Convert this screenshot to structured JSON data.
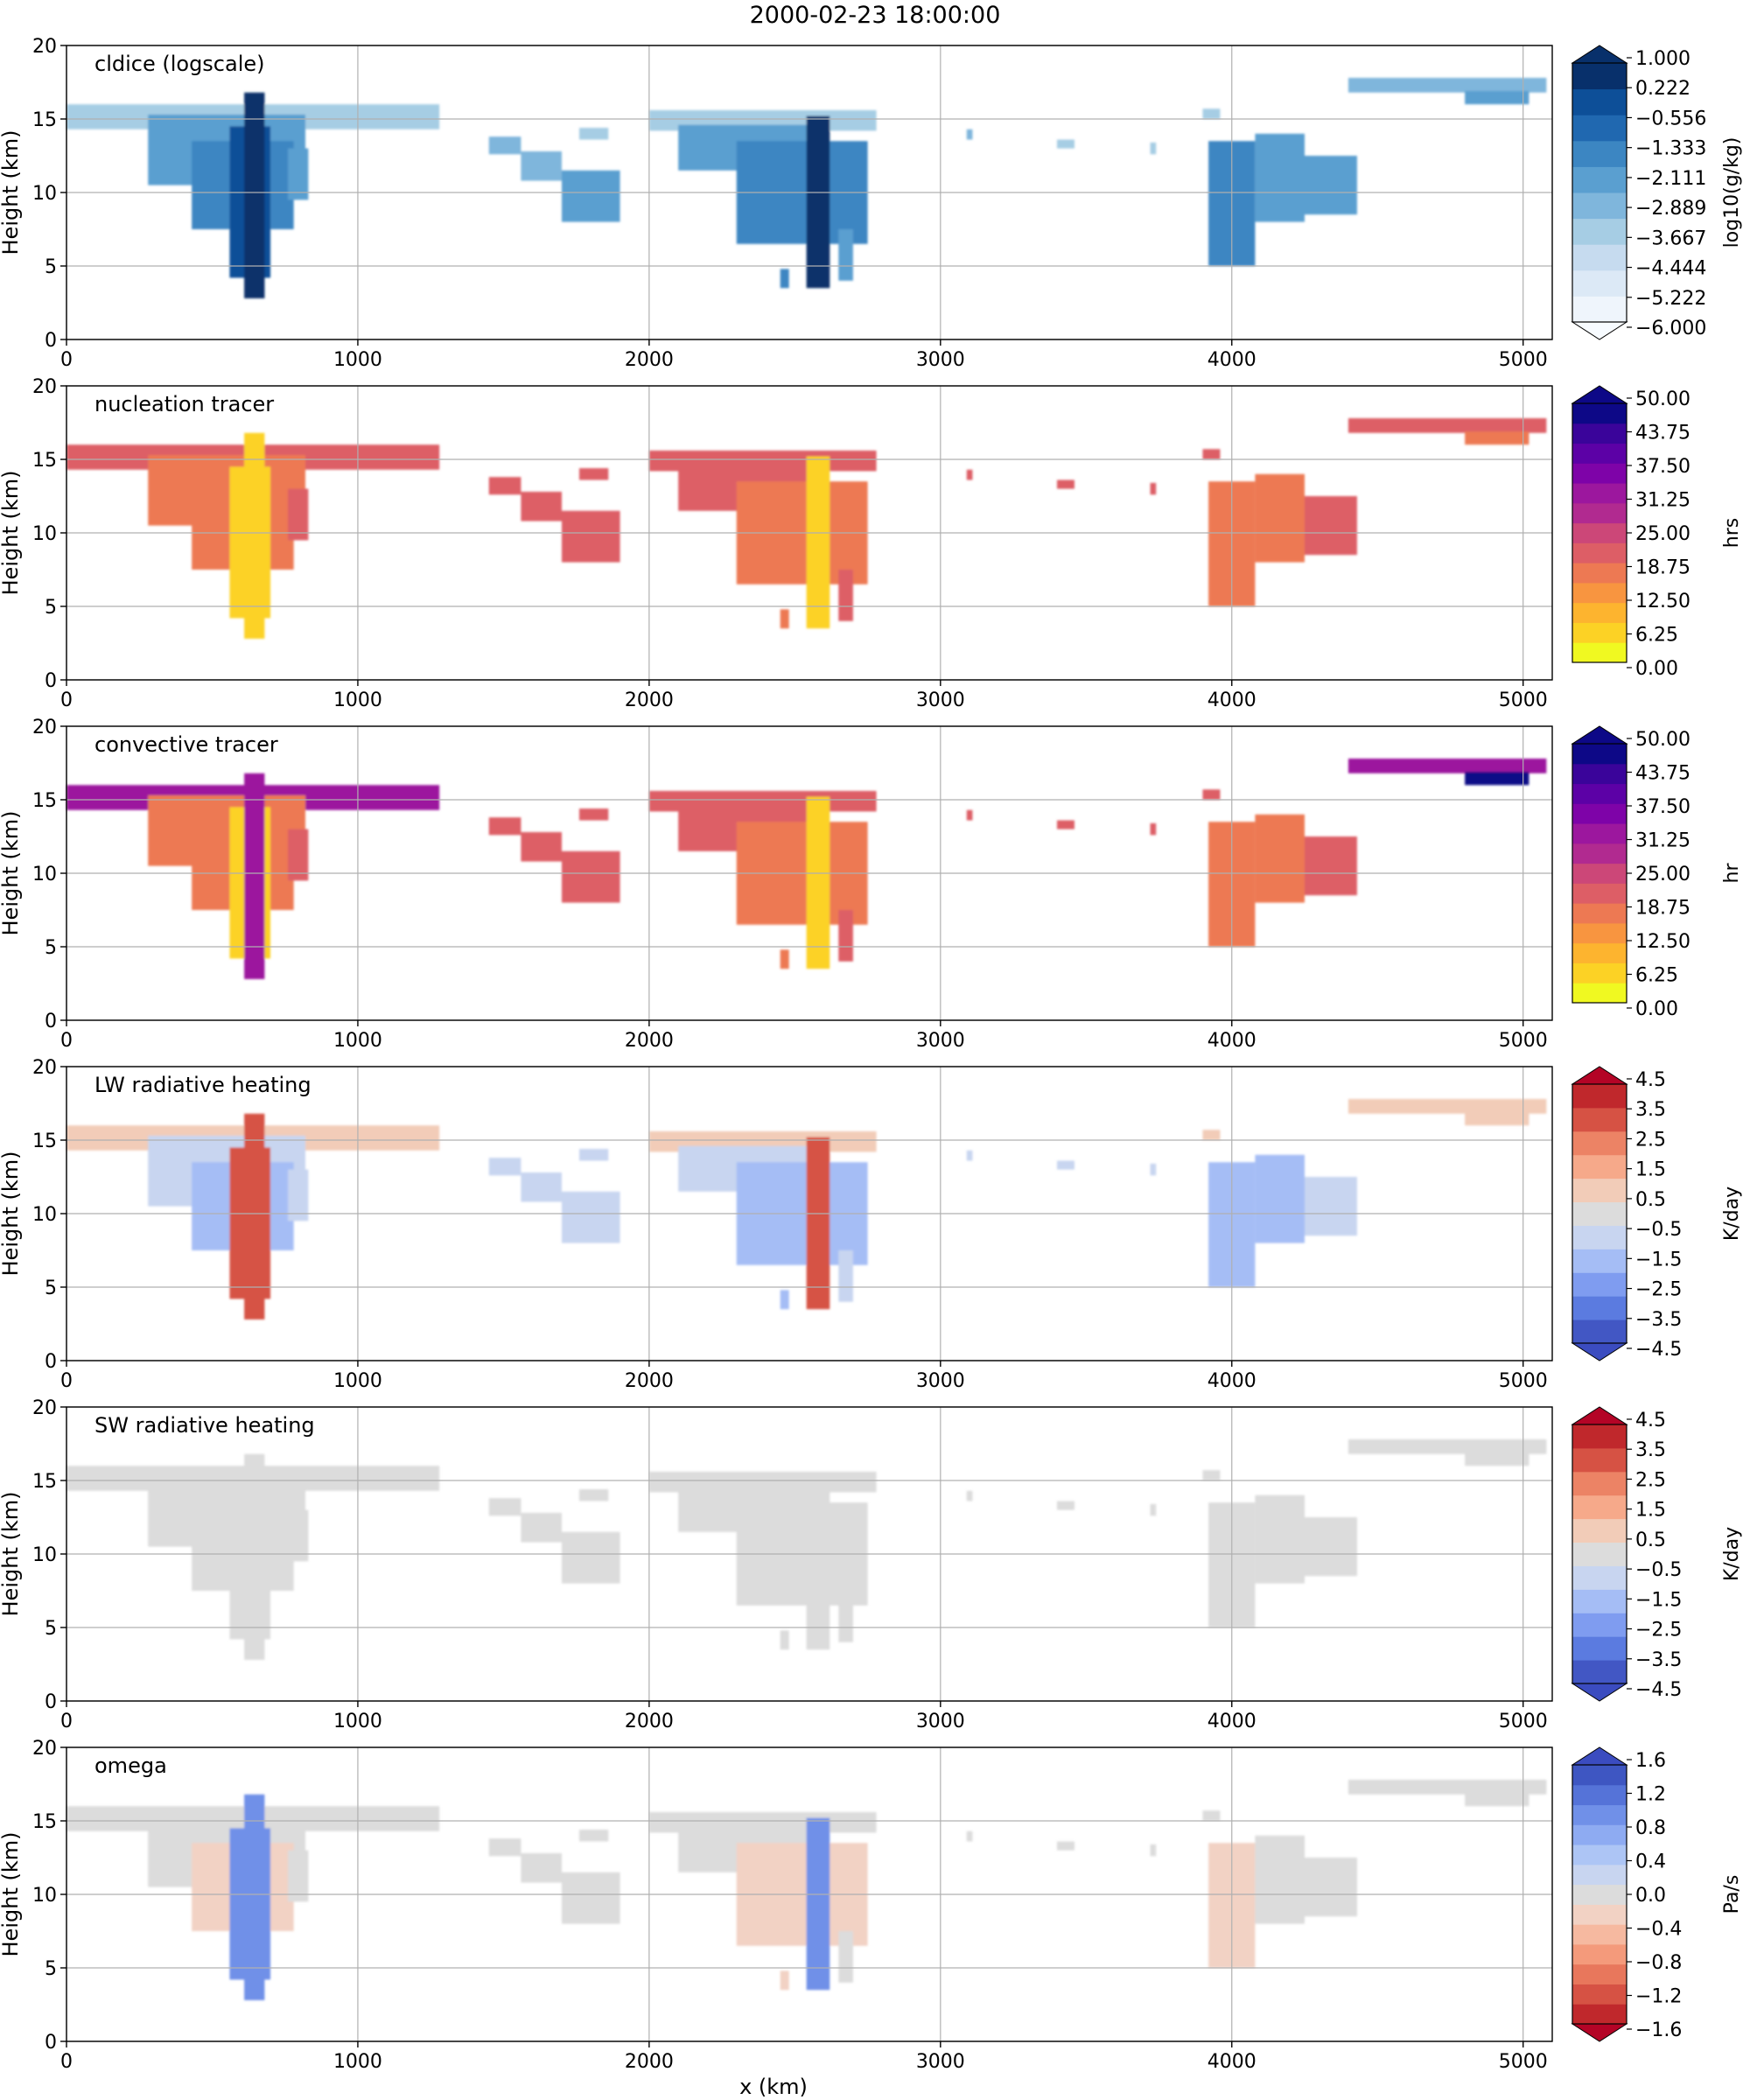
{
  "figure": {
    "title": "2000-02-23 18:00:00",
    "xlabel": "x (km)",
    "ylabel": "Height (km)"
  },
  "chart_data": [
    {
      "type": "heatmap",
      "title": "cldice (logscale)",
      "xlabel": "",
      "ylabel": "Height (km)",
      "xlim": [
        0,
        5100
      ],
      "ylim": [
        0,
        20
      ],
      "xticks": [
        "0",
        "1000",
        "2000",
        "3000",
        "4000",
        "5000"
      ],
      "yticks": [
        "0",
        "5",
        "10",
        "15",
        "20"
      ],
      "grid": true,
      "colormap": "Blues",
      "colorbar": {
        "label": "log10(g/kg)",
        "ticks": [
          "1.000",
          "0.222",
          "−0.556",
          "−1.333",
          "−2.111",
          "−2.889",
          "−3.667",
          "−4.444",
          "−5.222",
          "−6.000"
        ],
        "colors": [
          "#eff5fc",
          "#dce9f6",
          "#c6dbef",
          "#a6cde4",
          "#7fb6dc",
          "#5a9fd0",
          "#3c86c2",
          "#2068b0",
          "#0d4f98",
          "#08306b"
        ],
        "extend_low": "#f7fbff",
        "extend_high": "#08306b"
      }
    },
    {
      "type": "heatmap",
      "title": "nucleation tracer",
      "xlabel": "",
      "ylabel": "Height (km)",
      "xlim": [
        0,
        5100
      ],
      "ylim": [
        0,
        20
      ],
      "xticks": [
        "0",
        "1000",
        "2000",
        "3000",
        "4000",
        "5000"
      ],
      "yticks": [
        "0",
        "5",
        "10",
        "15",
        "20"
      ],
      "grid": true,
      "colormap": "plasma_r",
      "colorbar": {
        "label": "hrs",
        "ticks": [
          "50.00",
          "43.75",
          "37.50",
          "31.25",
          "25.00",
          "18.75",
          "12.50",
          "6.25",
          "0.00"
        ],
        "colors": [
          "#f0f921",
          "#fcd225",
          "#fdb42f",
          "#f89540",
          "#ed7953",
          "#dd5e66",
          "#cc4778",
          "#b12a90",
          "#9c179e",
          "#7e03a8",
          "#5c01a6",
          "#3a049a",
          "#0d0887"
        ],
        "extend_high": "#0d0887"
      }
    },
    {
      "type": "heatmap",
      "title": "convective tracer",
      "xlabel": "",
      "ylabel": "Height (km)",
      "xlim": [
        0,
        5100
      ],
      "ylim": [
        0,
        20
      ],
      "xticks": [
        "0",
        "1000",
        "2000",
        "3000",
        "4000",
        "5000"
      ],
      "yticks": [
        "0",
        "5",
        "10",
        "15",
        "20"
      ],
      "grid": true,
      "colormap": "plasma_r",
      "colorbar": {
        "label": "hr",
        "ticks": [
          "50.00",
          "43.75",
          "37.50",
          "31.25",
          "25.00",
          "18.75",
          "12.50",
          "6.25",
          "0.00"
        ],
        "colors": [
          "#f0f921",
          "#fcd225",
          "#fdb42f",
          "#f89540",
          "#ed7953",
          "#dd5e66",
          "#cc4778",
          "#b12a90",
          "#9c179e",
          "#7e03a8",
          "#5c01a6",
          "#3a049a",
          "#0d0887"
        ],
        "extend_high": "#0d0887"
      }
    },
    {
      "type": "heatmap",
      "title": "LW radiative heating",
      "xlabel": "",
      "ylabel": "Height (km)",
      "xlim": [
        0,
        5100
      ],
      "ylim": [
        0,
        20
      ],
      "xticks": [
        "0",
        "1000",
        "2000",
        "3000",
        "4000",
        "5000"
      ],
      "yticks": [
        "0",
        "5",
        "10",
        "15",
        "20"
      ],
      "grid": true,
      "colormap": "coolwarm",
      "colorbar": {
        "label": "K/day",
        "ticks": [
          "4.5",
          "3.5",
          "2.5",
          "1.5",
          "0.5",
          "−0.5",
          "−1.5",
          "−2.5",
          "−3.5",
          "−4.5"
        ],
        "colors": [
          "#4257c4",
          "#5b7be0",
          "#7f9cf0",
          "#a5bdf5",
          "#c8d5f0",
          "#dcdcdc",
          "#f2ccb8",
          "#f6a98a",
          "#ec8365",
          "#d65244",
          "#c0282c"
        ],
        "extend_low": "#3b4cc0",
        "extend_high": "#b40426"
      }
    },
    {
      "type": "heatmap",
      "title": "SW radiative heating",
      "xlabel": "",
      "ylabel": "Height (km)",
      "xlim": [
        0,
        5100
      ],
      "ylim": [
        0,
        20
      ],
      "xticks": [
        "0",
        "1000",
        "2000",
        "3000",
        "4000",
        "5000"
      ],
      "yticks": [
        "0",
        "5",
        "10",
        "15",
        "20"
      ],
      "grid": true,
      "colormap": "coolwarm",
      "colorbar": {
        "label": "K/day",
        "ticks": [
          "4.5",
          "3.5",
          "2.5",
          "1.5",
          "0.5",
          "−0.5",
          "−1.5",
          "−2.5",
          "−3.5",
          "−4.5"
        ],
        "colors": [
          "#4257c4",
          "#5b7be0",
          "#7f9cf0",
          "#a5bdf5",
          "#c8d5f0",
          "#dcdcdc",
          "#f2ccb8",
          "#f6a98a",
          "#ec8365",
          "#d65244",
          "#c0282c"
        ],
        "extend_low": "#3b4cc0",
        "extend_high": "#b40426"
      }
    },
    {
      "type": "heatmap",
      "title": "omega",
      "xlabel": "x (km)",
      "ylabel": "Height (km)",
      "xlim": [
        0,
        5100
      ],
      "ylim": [
        0,
        20
      ],
      "xticks": [
        "0",
        "1000",
        "2000",
        "3000",
        "4000",
        "5000"
      ],
      "yticks": [
        "0",
        "5",
        "10",
        "15",
        "20"
      ],
      "grid": true,
      "colormap": "coolwarm_r",
      "colorbar": {
        "label": "Pa/s",
        "ticks": [
          "1.6",
          "1.2",
          "0.8",
          "0.4",
          "0.0",
          "−0.4",
          "−0.8",
          "−1.2",
          "−1.6"
        ],
        "colors": [
          "#c0282c",
          "#d65244",
          "#e8775c",
          "#f49a7b",
          "#f6b9a0",
          "#f2d2c4",
          "#dcdcdc",
          "#c8d5f0",
          "#adc5f5",
          "#8eabf2",
          "#7090e8",
          "#5573d8",
          "#3e56c2"
        ],
        "extend_low": "#b40426",
        "extend_high": "#3b4cc0"
      }
    }
  ]
}
